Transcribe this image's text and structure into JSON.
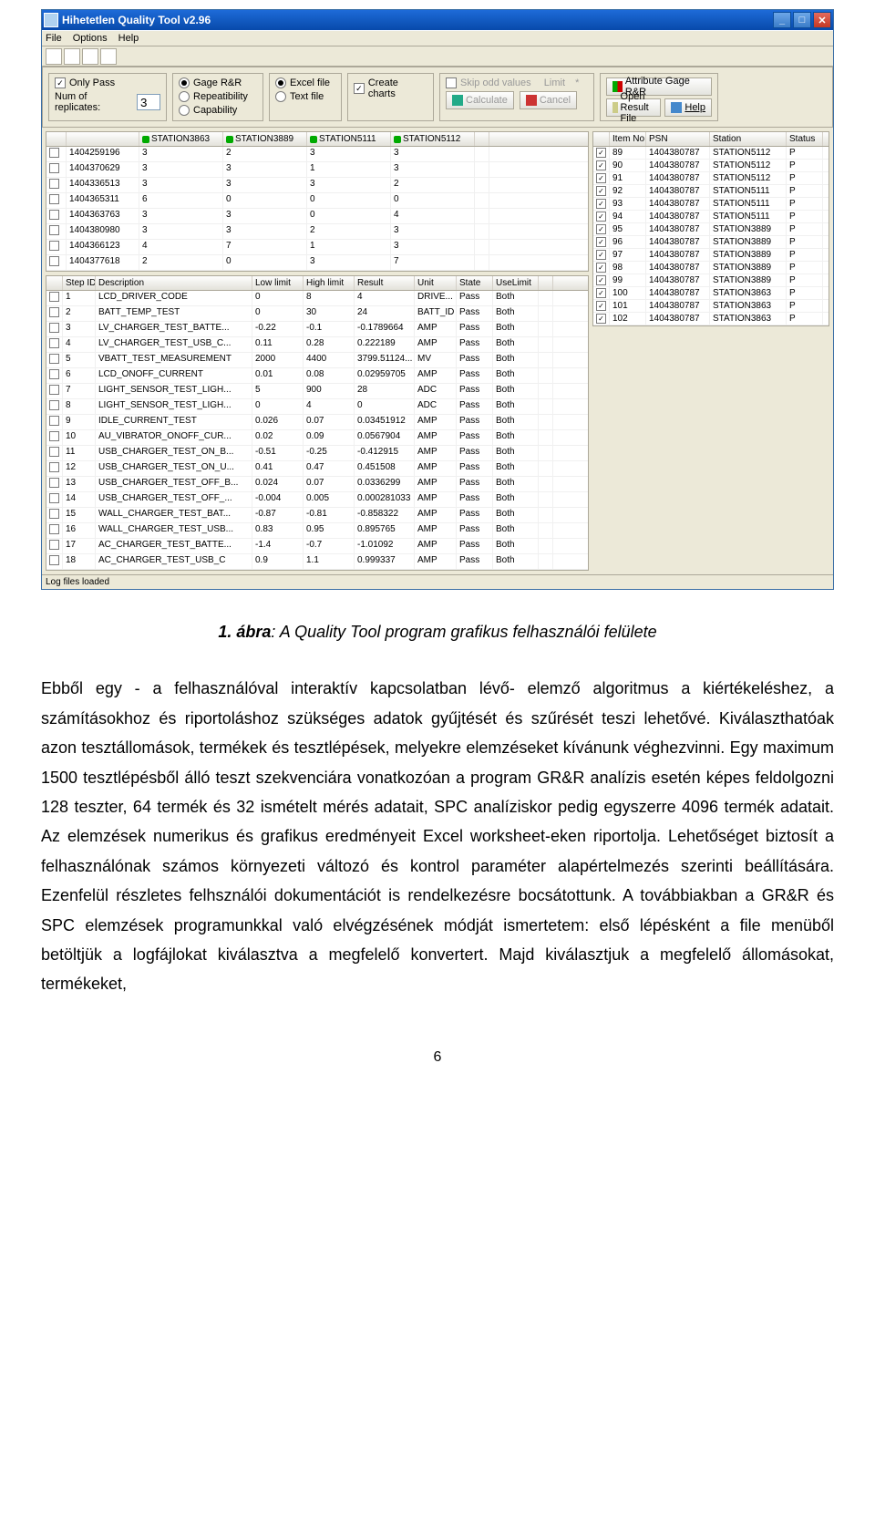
{
  "window": {
    "title": "Hihetetlen Quality Tool v2.96",
    "menu": [
      "File",
      "Options",
      "Help"
    ],
    "controls": {
      "min": "_",
      "max": "□",
      "close": "✕"
    }
  },
  "options": {
    "only_pass": "Only Pass",
    "num_repl_label": "Num of replicates:",
    "num_repl_value": "3",
    "gage": "Gage R&R",
    "repeat": "Repeatibility",
    "capab": "Capability",
    "excel": "Excel file",
    "text": "Text file",
    "create_charts": "Create charts",
    "skip": "Skip odd values",
    "limit": "Limit",
    "limit_val": "*",
    "calc": "Calculate",
    "cancel": "Cancel",
    "open": "Open Result File",
    "help": "Help",
    "attr": "Attribute Gage R&R"
  },
  "stations": {
    "headers": [
      "",
      "",
      "STATION3863",
      "STATION3889",
      "STATION5111",
      "STATION5112"
    ],
    "rows": [
      [
        "1404259196",
        "3",
        "2",
        "3",
        "3"
      ],
      [
        "1404370629",
        "3",
        "3",
        "1",
        "3"
      ],
      [
        "1404336513",
        "3",
        "3",
        "3",
        "2"
      ],
      [
        "1404365311",
        "6",
        "0",
        "0",
        "0"
      ],
      [
        "1404363763",
        "3",
        "3",
        "0",
        "4"
      ],
      [
        "1404380980",
        "3",
        "3",
        "2",
        "3"
      ],
      [
        "1404366123",
        "4",
        "7",
        "1",
        "3"
      ],
      [
        "1404377618",
        "2",
        "0",
        "3",
        "7"
      ]
    ]
  },
  "steps": {
    "headers": [
      "",
      "Step ID",
      "Description",
      "Low limit",
      "High limit",
      "Result",
      "Unit",
      "State",
      "UseLimit"
    ],
    "rows": [
      [
        "1",
        "LCD_DRIVER_CODE",
        "0",
        "8",
        "4",
        "DRIVE...",
        "Pass",
        "Both"
      ],
      [
        "2",
        "BATT_TEMP_TEST",
        "0",
        "30",
        "24",
        "BATT_ID",
        "Pass",
        "Both"
      ],
      [
        "3",
        "LV_CHARGER_TEST_BATTE...",
        "-0.22",
        "-0.1",
        "-0.1789664",
        "AMP",
        "Pass",
        "Both"
      ],
      [
        "4",
        "LV_CHARGER_TEST_USB_C...",
        "0.11",
        "0.28",
        "0.222189",
        "AMP",
        "Pass",
        "Both"
      ],
      [
        "5",
        "VBATT_TEST_MEASUREMENT",
        "2000",
        "4400",
        "3799.51124...",
        "MV",
        "Pass",
        "Both"
      ],
      [
        "6",
        "LCD_ONOFF_CURRENT",
        "0.01",
        "0.08",
        "0.02959705",
        "AMP",
        "Pass",
        "Both"
      ],
      [
        "7",
        "LIGHT_SENSOR_TEST_LIGH...",
        "5",
        "900",
        "28",
        "ADC",
        "Pass",
        "Both"
      ],
      [
        "8",
        "LIGHT_SENSOR_TEST_LIGH...",
        "0",
        "4",
        "0",
        "ADC",
        "Pass",
        "Both"
      ],
      [
        "9",
        "IDLE_CURRENT_TEST",
        "0.026",
        "0.07",
        "0.03451912",
        "AMP",
        "Pass",
        "Both"
      ],
      [
        "10",
        "AU_VIBRATOR_ONOFF_CUR...",
        "0.02",
        "0.09",
        "0.0567904",
        "AMP",
        "Pass",
        "Both"
      ],
      [
        "11",
        "USB_CHARGER_TEST_ON_B...",
        "-0.51",
        "-0.25",
        "-0.412915",
        "AMP",
        "Pass",
        "Both"
      ],
      [
        "12",
        "USB_CHARGER_TEST_ON_U...",
        "0.41",
        "0.47",
        "0.451508",
        "AMP",
        "Pass",
        "Both"
      ],
      [
        "13",
        "USB_CHARGER_TEST_OFF_B...",
        "0.024",
        "0.07",
        "0.0336299",
        "AMP",
        "Pass",
        "Both"
      ],
      [
        "14",
        "USB_CHARGER_TEST_OFF_...",
        "-0.004",
        "0.005",
        "0.000281033",
        "AMP",
        "Pass",
        "Both"
      ],
      [
        "15",
        "WALL_CHARGER_TEST_BAT...",
        "-0.87",
        "-0.81",
        "-0.858322",
        "AMP",
        "Pass",
        "Both"
      ],
      [
        "16",
        "WALL_CHARGER_TEST_USB...",
        "0.83",
        "0.95",
        "0.895765",
        "AMP",
        "Pass",
        "Both"
      ],
      [
        "17",
        "AC_CHARGER_TEST_BATTE...",
        "-1.4",
        "-0.7",
        "-1.01092",
        "AMP",
        "Pass",
        "Both"
      ],
      [
        "18",
        "AC_CHARGER_TEST_USB_C",
        "0.9",
        "1.1",
        "0.999337",
        "AMP",
        "Pass",
        "Both"
      ]
    ]
  },
  "rightTable": {
    "headers": [
      "",
      "Item No",
      "PSN",
      "Station",
      "Status"
    ],
    "rows": [
      [
        "89",
        "1404380787",
        "STATION5112",
        "P"
      ],
      [
        "90",
        "1404380787",
        "STATION5112",
        "P"
      ],
      [
        "91",
        "1404380787",
        "STATION5112",
        "P"
      ],
      [
        "92",
        "1404380787",
        "STATION5111",
        "P"
      ],
      [
        "93",
        "1404380787",
        "STATION5111",
        "P"
      ],
      [
        "94",
        "1404380787",
        "STATION5111",
        "P"
      ],
      [
        "95",
        "1404380787",
        "STATION3889",
        "P"
      ],
      [
        "96",
        "1404380787",
        "STATION3889",
        "P"
      ],
      [
        "97",
        "1404380787",
        "STATION3889",
        "P"
      ],
      [
        "98",
        "1404380787",
        "STATION3889",
        "P"
      ],
      [
        "99",
        "1404380787",
        "STATION3889",
        "P"
      ],
      [
        "100",
        "1404380787",
        "STATION3863",
        "P"
      ],
      [
        "101",
        "1404380787",
        "STATION3863",
        "P"
      ],
      [
        "102",
        "1404380787",
        "STATION3863",
        "P"
      ]
    ]
  },
  "statusbar": "Log files loaded",
  "doc": {
    "caption_prefix": "1. ábra",
    "caption_rest": ": A Quality Tool program grafikus felhasználói felülete",
    "body": "Ebből egy - a felhasználóval interaktív kapcsolatban lévő- elemző algoritmus a kiértékeléshez, a számításokhoz és riportoláshoz szükséges adatok gyűjtését és szűrését teszi lehetővé. Kiválaszthatóak azon tesztállomások, termékek és tesztlépések, melyekre elemzéseket kívánunk véghezvinni. Egy maximum 1500 tesztlépésből álló teszt szekvenciára vonatkozóan a program GR&R analízis esetén képes feldolgozni 128 teszter, 64 termék és 32 ismételt mérés adatait, SPC analíziskor pedig egyszerre 4096 termék adatait. Az elemzések numerikus és grafikus eredményeit Excel worksheet-eken riportolja. Lehetőséget biztosít a felhasználónak számos környezeti változó és kontrol paraméter alapértelmezés szerinti beállítására. Ezenfelül részletes felhsználói dokumentációt is rendelkezésre bocsátottunk. A továbbiakban a GR&R és SPC elemzések programunkkal való elvégzésének módját ismertetem: első lépésként a file menüből betöltjük a logfájlokat kiválasztva a megfelelő konvertert. Majd kiválasztjuk a megfelelő állomásokat, termékeket,",
    "pagenum": "6"
  }
}
